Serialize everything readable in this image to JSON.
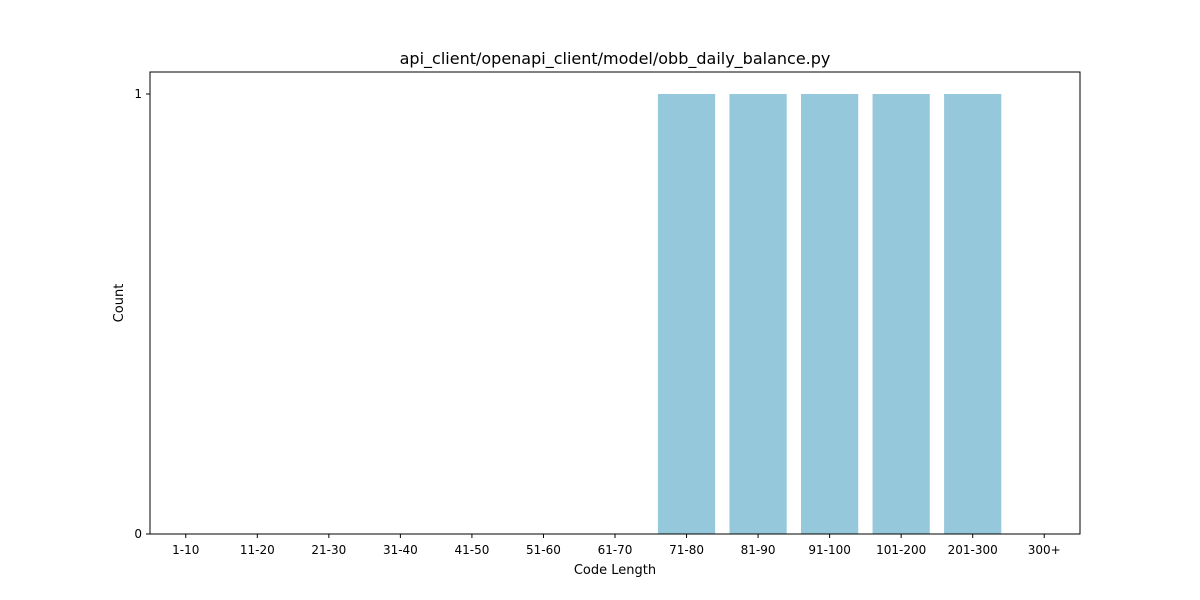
{
  "chart_data": {
    "type": "bar",
    "title": "api_client/openapi_client/model/obb_daily_balance.py",
    "xlabel": "Code Length",
    "ylabel": "Count",
    "categories": [
      "1-10",
      "11-20",
      "21-30",
      "31-40",
      "41-50",
      "51-60",
      "61-70",
      "71-80",
      "81-90",
      "91-100",
      "101-200",
      "201-300",
      "300+"
    ],
    "values": [
      0,
      0,
      0,
      0,
      0,
      0,
      0,
      1,
      1,
      1,
      1,
      1,
      0
    ],
    "ylim": [
      0,
      1
    ],
    "yticks": [
      0,
      1
    ],
    "grid": false,
    "bar_color": "#96c8dc"
  }
}
